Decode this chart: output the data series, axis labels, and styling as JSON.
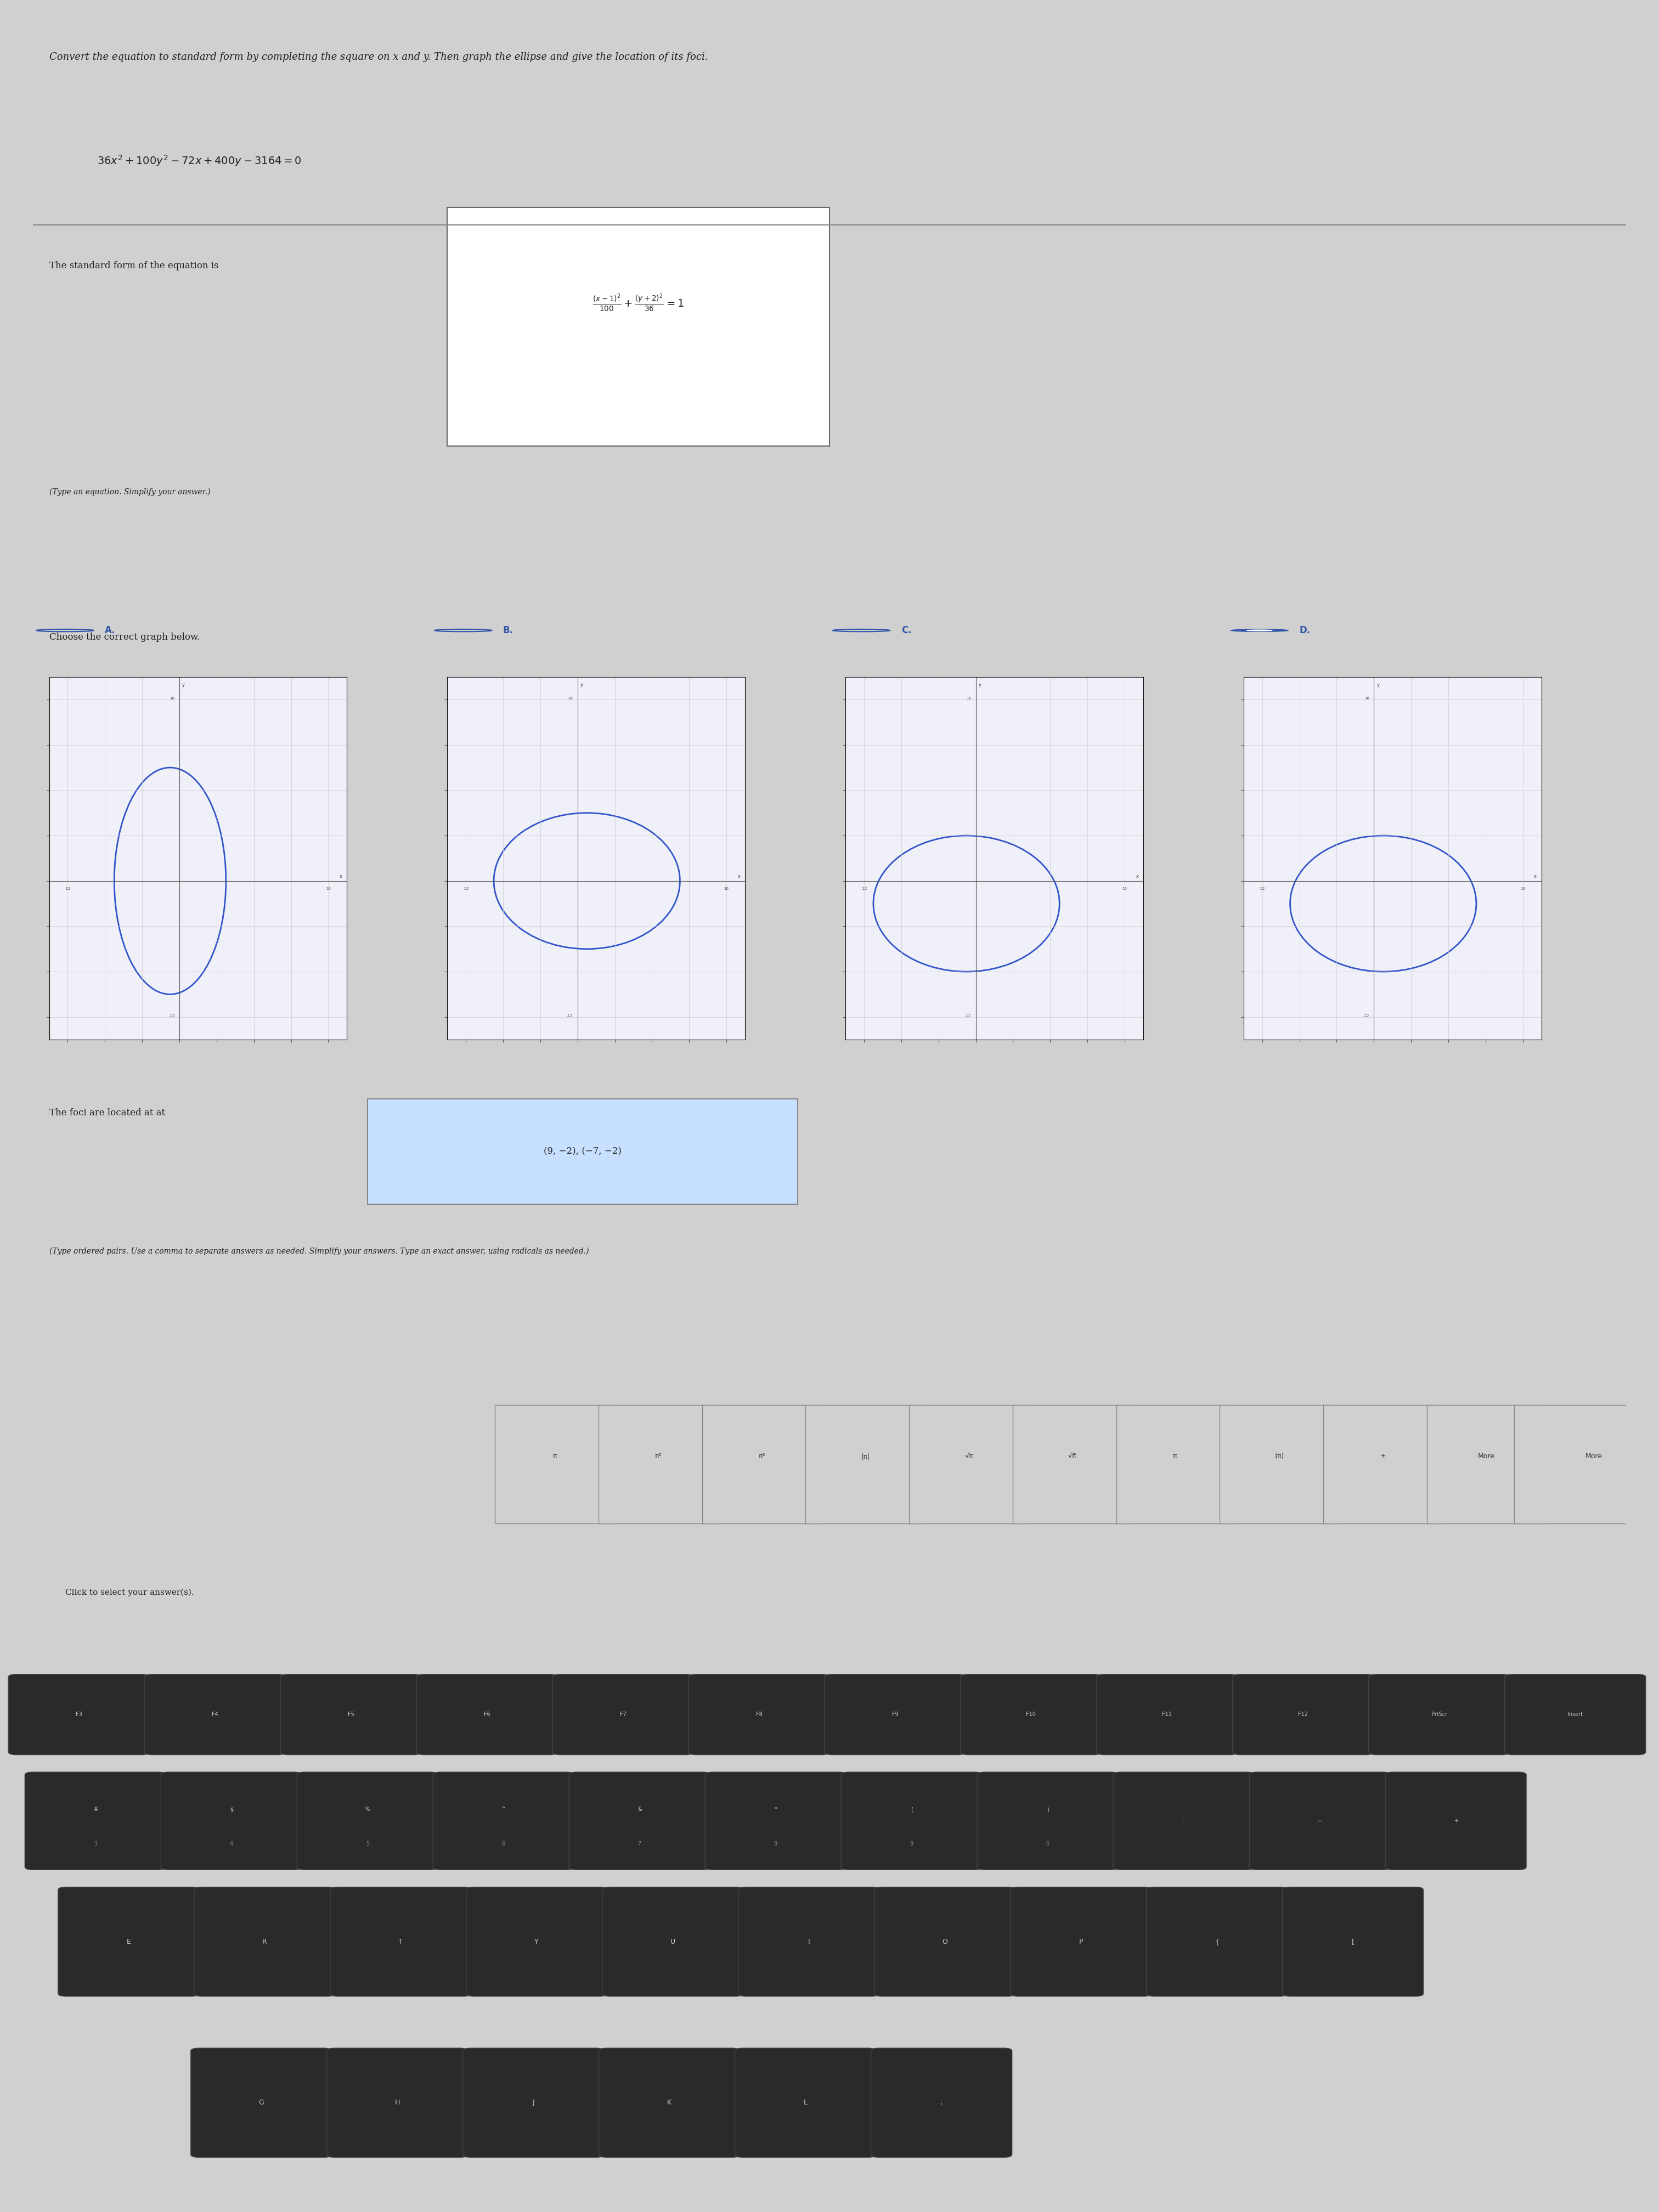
{
  "title_text": "Convert the equation to standard form by completing the square on x and y. Then graph the ellipse and give the location of its foci.",
  "equation": "36x² + 100y² − 72x + 400y − 3164 = 0",
  "standard_form_label": "The standard form of the equation is",
  "standard_form": "\\frac{(x-1)^2}{100} + \\frac{(y+2)^2}{36} = 1",
  "type_equation_note": "(Type an equation. Simplify your answer.)",
  "choose_graph_label": "Choose the correct graph below.",
  "options": [
    "A.",
    "B.",
    "C.",
    "D."
  ],
  "selected_option": "D",
  "foci_label": "The foci are located at",
  "foci_answer": "(9, −2), (−7, −2)",
  "foci_note": "(Type ordered pairs. Use a comma to separate answers as needed. Simplify your answers. Type an exact answer, using radicals as needed.)",
  "bg_color": "#d0d0d0",
  "content_bg": "#e8e8e8",
  "text_color": "#222222",
  "blue_color": "#3355aa",
  "ellipse_color": "#3355cc",
  "axis_color": "#444444",
  "grid_color": "#aaaaaa",
  "answer_box_color": "#dddddd",
  "answer_highlight": "#c8e0ff"
}
